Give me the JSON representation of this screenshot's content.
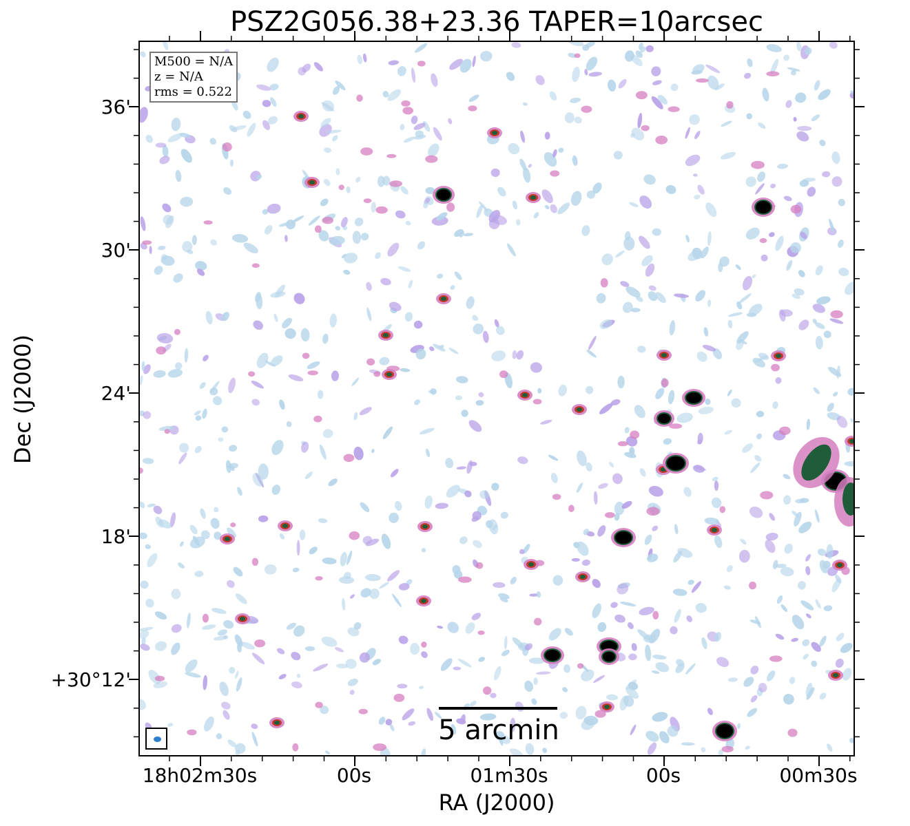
{
  "title": "PSZ2G056.38+23.36 TAPER=10arcsec",
  "info": {
    "m500": "M500 = N/A",
    "z": "z = N/A",
    "rms": "rms = 0.522"
  },
  "scalebar_label": "5 arcmin",
  "axes": {
    "xlabel": "RA (J2000)",
    "ylabel": "Dec (J2000)",
    "xticks": [
      "18h02m30s",
      "00s",
      "01m30s",
      "00s",
      "00m30s"
    ],
    "yticks": [
      "36'",
      "30'",
      "24'",
      "18'",
      "+30°12'"
    ]
  },
  "colors": {
    "noise_blue": "#b7d6ea",
    "noise_lilac": "#b9a3e8",
    "source_pink": "#d57fc0",
    "source_red": "#c0392b",
    "source_green": "#1f5d3a",
    "source_core": "#000000"
  }
}
